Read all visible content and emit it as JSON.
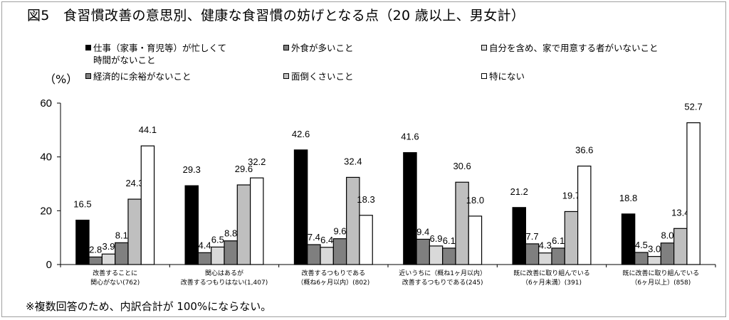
{
  "chart_data": {
    "type": "bar",
    "title": "図5　食習慣改善の意思別、健康な食習慣の妨げとなる点（20 歳以上、男女計）",
    "ylabel": "（%）",
    "xlabel": "",
    "ylim": [
      0,
      60
    ],
    "yticks": [
      0,
      20,
      40,
      60
    ],
    "grid": false,
    "legend_position": "top",
    "categories": [
      [
        "改善することに",
        "関心がない(762)"
      ],
      [
        "関心はあるが",
        "改善するつもりはない(1,407)"
      ],
      [
        "改善するつもりである",
        "（概ね6ヶ月以内）(802)"
      ],
      [
        "近いうちに（概ね1ヶ月以内）",
        "改善するつもりである(245)"
      ],
      [
        "既に改善に取り組んでいる",
        "（6ヶ月未満）(391)"
      ],
      [
        "既に改善に取り組んでいる",
        "（6ヶ月以上）(858)"
      ]
    ],
    "series": [
      {
        "name": "仕事（家事・育児等）が忙しくて\n時間がないこと",
        "color": "#000000",
        "values": [
          16.5,
          29.3,
          42.6,
          41.6,
          21.2,
          18.8
        ]
      },
      {
        "name": "外食が多いこと",
        "color": "#7f7f7f",
        "values": [
          2.8,
          4.4,
          7.4,
          9.4,
          7.7,
          4.5
        ]
      },
      {
        "name": "自分を含め、家で用意する者がいないこと",
        "color": "#d9d9d9",
        "values": [
          3.9,
          6.5,
          6.4,
          6.9,
          4.3,
          3.0
        ]
      },
      {
        "name": "経済的に余裕がないこと",
        "color": "#808080",
        "values": [
          8.1,
          8.8,
          9.6,
          6.1,
          6.1,
          8.0
        ]
      },
      {
        "name": "面倒くさいこと",
        "color": "#bfbfbf",
        "values": [
          24.3,
          29.6,
          32.4,
          30.6,
          19.7,
          13.4
        ]
      },
      {
        "name": "特にない",
        "color": "#ffffff",
        "values": [
          44.1,
          32.2,
          18.3,
          18.0,
          36.6,
          52.7
        ]
      }
    ],
    "data_labels": [
      [
        "16.5",
        "29.3",
        "42.6",
        "41.6",
        "21.2",
        "18.8"
      ],
      [
        "2.8",
        "4.4",
        "7.4",
        "9.4",
        "7.7",
        "4.5"
      ],
      [
        "3.9",
        "6.5",
        "6.4",
        "6.9",
        "4.3",
        "3.0"
      ],
      [
        "8.1",
        "8.8",
        "9.6",
        "6.1",
        "6.1",
        "8.0"
      ],
      [
        "24.3",
        "29.6",
        "32.4",
        "30.6",
        "19.7",
        "13.4"
      ],
      [
        "44.1",
        "32.2",
        "18.3",
        "18.0",
        "36.6",
        "52.7"
      ]
    ]
  },
  "footnote": "※複数回答のため、内訳合計が 100%にならない。"
}
